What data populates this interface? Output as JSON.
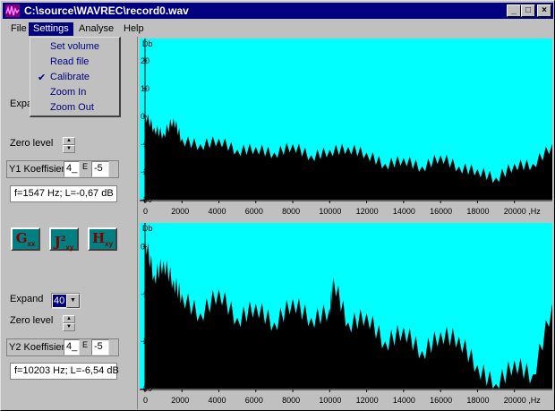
{
  "window": {
    "title": "C:\\source\\WAVREC\\record0.wav",
    "controls": [
      "minimize-icon",
      "maximize-icon",
      "close-icon"
    ]
  },
  "menu": {
    "items": [
      "File",
      "Settings",
      "Analyse",
      "Help"
    ],
    "active": "Settings"
  },
  "settings_menu": {
    "items": [
      "Set volume",
      "Read file",
      "Calibrate",
      "Zoom In",
      "Zoom Out"
    ],
    "checked": "Calibrate"
  },
  "panel1": {
    "expand_label": "Expa",
    "zero_level_label": "Zero level",
    "koeff_label": "Y1 Koeffisien",
    "koeff_mantissa": "4_",
    "koeff_e_label": "E",
    "koeff_exponent": "-5",
    "readout": "f=1547 Hz; L=-0,67 dB"
  },
  "buttons": {
    "gxx": "G",
    "gxx_sub": "xx",
    "jxy": "J",
    "jxy_sub": "xy",
    "jxy_sup": "2",
    "hxy": "H",
    "hxy_sub": "xy"
  },
  "panel2": {
    "expand_label": "Expand",
    "expand_value": "40",
    "zero_level_label": "Zero level",
    "koeff_label": "Y2 Koeffisien",
    "koeff_mantissa": "4_",
    "koeff_e_label": "E",
    "koeff_exponent": "-5",
    "readout": "f=10203 Hz; L=-6,54 dB"
  },
  "colors": {
    "plot_background": "#00ffff",
    "spectrum_fill": "#000000",
    "titlebar": "#000080"
  },
  "chart_data": [
    {
      "type": "area",
      "title": "",
      "ylabel": "Db",
      "xlabel": "",
      "x_ticks": [
        "0",
        "2000",
        "4000",
        "6000",
        "8000",
        "10000",
        "12000",
        "14000",
        "16000",
        "18000",
        "20000 ,Hz"
      ],
      "y_ticks": [
        "20",
        "10",
        "0",
        "-10",
        "-20",
        "-30"
      ],
      "xlim": [
        0,
        22050
      ],
      "ylim": [
        -30,
        28
      ],
      "series": [
        {
          "x": [
            0,
            500,
            1000,
            1547,
            2000,
            3000,
            4000,
            5000,
            6000,
            7000,
            8000,
            9000,
            10000,
            11000,
            12000,
            13000,
            14000,
            15000,
            16000,
            17000,
            18000,
            19000,
            20000,
            21000,
            22050
          ],
          "values": [
            1,
            -4,
            -6,
            -0.7,
            -8,
            -10,
            -8,
            -12,
            -11,
            -13,
            -10,
            -14,
            -12,
            -11,
            -13,
            -17,
            -15,
            -18,
            -14,
            -18,
            -19,
            -22,
            -17,
            -17,
            -10
          ]
        }
      ]
    },
    {
      "type": "area",
      "title": "",
      "ylabel": "Db",
      "xlabel": "",
      "x_ticks": [
        "0",
        "2000",
        "4000",
        "6000",
        "8000",
        "10000",
        "12000",
        "14000",
        "16000",
        "18000",
        "20000 ,Hz"
      ],
      "y_ticks": [
        "0",
        "-10",
        "-20",
        "-30"
      ],
      "xlim": [
        0,
        22050
      ],
      "ylim": [
        -30,
        5
      ],
      "series": [
        {
          "x": [
            0,
            500,
            1000,
            1547,
            2000,
            3000,
            4000,
            5000,
            6000,
            7000,
            8000,
            9000,
            10000,
            10203,
            11000,
            12000,
            13000,
            14000,
            15000,
            16000,
            17000,
            18000,
            19000,
            20000,
            21000,
            22050
          ],
          "values": [
            2,
            -6,
            -3,
            -7,
            -10,
            -14,
            -9,
            -15,
            -12,
            -16,
            -11,
            -15,
            -13,
            -6.5,
            -16,
            -14,
            -20,
            -17,
            -22,
            -18,
            -19,
            -25,
            -29,
            -24,
            -27,
            -12
          ]
        }
      ]
    }
  ]
}
